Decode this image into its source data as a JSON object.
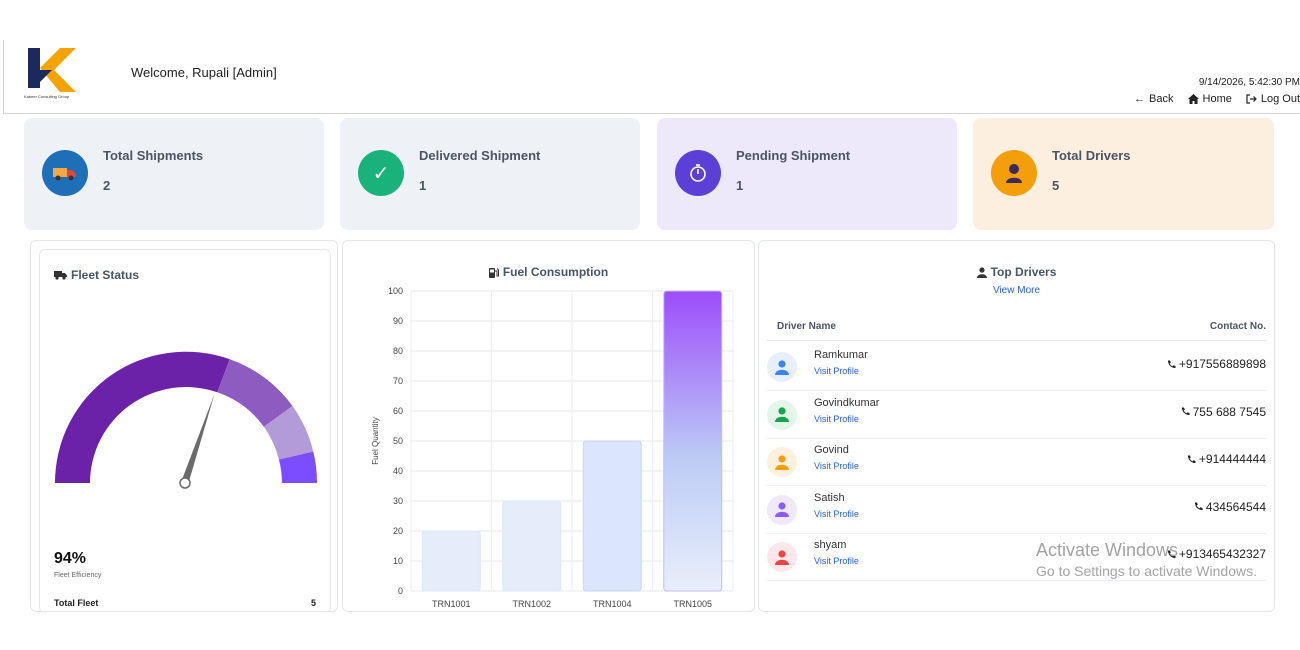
{
  "header": {
    "logo_text": "Kabeer Consulting Group",
    "welcome": "Welcome, Rupali [Admin]",
    "datetime": "9/14/2026, 5:42:30 PM",
    "nav": {
      "back": "Back",
      "home": "Home",
      "logout": "Log Out"
    }
  },
  "stats": [
    {
      "label": "Total Shipments",
      "value": "2",
      "icon": "truck-icon",
      "color": "#1f6fb8"
    },
    {
      "label": "Delivered Shipment",
      "value": "1",
      "icon": "check-icon",
      "color": "#19b27a"
    },
    {
      "label": "Pending Shipment",
      "value": "1",
      "icon": "timer-icon",
      "color": "#5b3fd6"
    },
    {
      "label": "Total Drivers",
      "value": "5",
      "icon": "driver-icon",
      "color": "#f59e0b"
    }
  ],
  "fleet": {
    "title": "Fleet Status",
    "efficiency": "94%",
    "efficiency_value": 0.94,
    "efficiency_label": "Fleet Efficiency",
    "total_label": "Total Fleet",
    "total_value": "5"
  },
  "fuel": {
    "title": "Fuel Consumption"
  },
  "chart_data": {
    "type": "bar",
    "title": "Fuel Consumption",
    "categories": [
      "TRN1001",
      "TRN1002",
      "TRN1004",
      "TRN1005"
    ],
    "values": [
      20,
      30,
      50,
      100
    ],
    "xlabel": "",
    "ylabel": "Fuel Quantity",
    "ylim": [
      0,
      100
    ],
    "yticks": [
      0,
      10,
      20,
      30,
      40,
      50,
      60,
      70,
      80,
      90,
      100
    ],
    "grid": true
  },
  "drivers": {
    "title": "Top Drivers",
    "view_more": "View More",
    "col_name": "Driver Name",
    "col_contact": "Contact No.",
    "rows": [
      {
        "name": "Ramkumar",
        "link": "Visit Profile",
        "phone": "+917556889898",
        "color": "#3b82f6",
        "bg": "#e8effb"
      },
      {
        "name": "Govindkumar",
        "link": "Visit Profile",
        "phone": "755 688 7545",
        "color": "#16a34a",
        "bg": "#e4f5ea"
      },
      {
        "name": "Govind",
        "link": "Visit Profile",
        "phone": "+914444444",
        "color": "#f59e0b",
        "bg": "#fdf1de"
      },
      {
        "name": "Satish",
        "link": "Visit Profile",
        "phone": "434564544",
        "color": "#8b5cf6",
        "bg": "#efe9fb"
      },
      {
        "name": "shyam",
        "link": "Visit Profile",
        "phone": "+913465432327",
        "color": "#ef4444",
        "bg": "#fde7ea"
      }
    ]
  },
  "watermark": {
    "line1": "Activate Windows",
    "line2": "Go to Settings to activate Windows."
  }
}
